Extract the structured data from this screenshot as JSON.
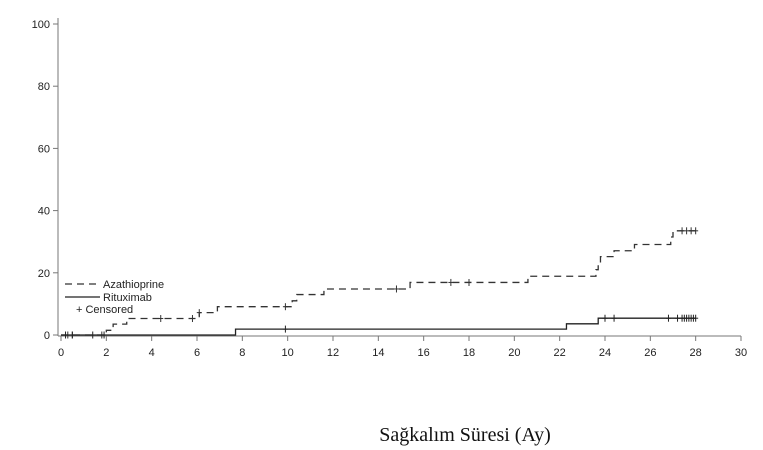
{
  "chart_data": {
    "type": "line",
    "title": "",
    "xlabel": "Sağkalım Süresi (Ay)",
    "ylabel": "",
    "xlim": [
      0,
      30
    ],
    "ylim": [
      0,
      100
    ],
    "xticks": [
      "0",
      "2",
      "4",
      "6",
      "8",
      "10",
      "12",
      "14",
      "16",
      "18",
      "20",
      "22",
      "24",
      "26",
      "28",
      "30"
    ],
    "yticks": [
      "0",
      "20",
      "40",
      "60",
      "80",
      "100"
    ],
    "grid": false,
    "legend_position": "bottom-left",
    "legend_censored_label": "+ Censored",
    "series": [
      {
        "name": "Azathioprine",
        "style": "dashed",
        "color": "#333333",
        "steps": [
          [
            0,
            0
          ],
          [
            2.0,
            1.5
          ],
          [
            2.3,
            3.5
          ],
          [
            2.9,
            5.3
          ],
          [
            6.1,
            7.2
          ],
          [
            6.9,
            9.1
          ],
          [
            10.2,
            11.0
          ],
          [
            10.4,
            13.0
          ],
          [
            11.6,
            14.8
          ],
          [
            15.4,
            16.9
          ],
          [
            20.6,
            18.9
          ],
          [
            23.6,
            21.0
          ],
          [
            23.7,
            23.0
          ],
          [
            23.8,
            25.2
          ],
          [
            24.4,
            27.1
          ],
          [
            25.3,
            29.1
          ],
          [
            26.9,
            31.5
          ],
          [
            27.0,
            33.5
          ],
          [
            28.0,
            33.5
          ]
        ],
        "censored": [
          0.3,
          0.5,
          1.8,
          4.4,
          5.8,
          6.1,
          9.9,
          14.8,
          17.2,
          18.0,
          27.4,
          27.6,
          27.8,
          28.0
        ]
      },
      {
        "name": "Rituximab",
        "style": "solid",
        "color": "#222222",
        "steps": [
          [
            0,
            0
          ],
          [
            7.7,
            1.9
          ],
          [
            22.3,
            3.6
          ],
          [
            23.7,
            5.4
          ],
          [
            28.0,
            5.4
          ]
        ],
        "censored": [
          0.2,
          0.5,
          1.4,
          1.9,
          9.9,
          24.0,
          24.4,
          26.8,
          27.2,
          27.4,
          27.5,
          27.6,
          27.7,
          27.8,
          27.9,
          28.0
        ]
      }
    ]
  }
}
